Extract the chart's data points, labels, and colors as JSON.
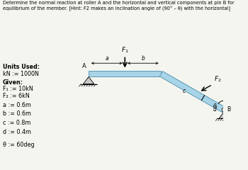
{
  "title_text": "Determine the normal reaction at roller A and the horizontal and vertical components at pin B for\nequilibrium of the member. [Hint: F2 makes an inclination angle of (90° – θ) with the horizontal]",
  "units_label": "Units Used:",
  "kN_label": "kN := 1000N",
  "given_label": "Given:",
  "F1_label": "F₁ := 10kN",
  "F2_label": "F₂ := 6kN",
  "a_label": "a := 0.6m",
  "b_label": "b := 0.6m",
  "c_label": "c := 0.8m",
  "d_label": "d := 0.4m",
  "theta_label": "θ := 60deg",
  "beam_color": "#a8d4e8",
  "beam_edge_color": "#5a9ab5",
  "bg_color": "#f5f5f0",
  "text_color": "#000000",
  "a_val": 0.6,
  "b_val": 0.6,
  "c_val": 0.8,
  "d_val": 0.4,
  "theta_deg": 60,
  "diagram_scale": 2.2
}
